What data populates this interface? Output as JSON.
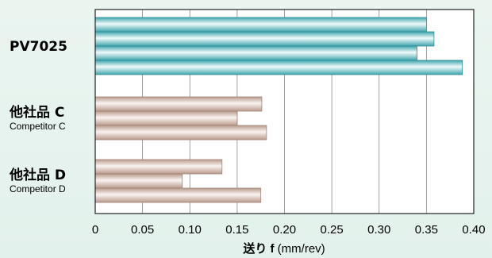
{
  "chart_data": {
    "type": "bar",
    "orientation": "horizontal",
    "xlabel_main": "送り",
    "xlabel_var": "f",
    "xlabel_unit": "(mm/rev)",
    "xlim": [
      0,
      0.4
    ],
    "xticks": [
      "0",
      "0.05",
      "0.10",
      "0.15",
      "0.20",
      "0.25",
      "0.30",
      "0.35",
      "0.40"
    ],
    "grid": true,
    "groups": [
      {
        "label": "PV7025",
        "sublabel": "",
        "color": "teal",
        "values": [
          0.35,
          0.358,
          0.34,
          0.388
        ]
      },
      {
        "label": "他社品 C",
        "sublabel": "Competitor C",
        "color": "tan",
        "values": [
          0.176,
          0.15,
          0.181
        ]
      },
      {
        "label": "他社品 D",
        "sublabel": "Competitor D",
        "color": "tan",
        "values": [
          0.134,
          0.092,
          0.175
        ]
      }
    ],
    "colors": {
      "teal_light": "#e9f6f7",
      "teal_dark": "#3fa6ae",
      "tan_light": "#f6eeea",
      "tan_dark": "#b99a8b"
    }
  }
}
